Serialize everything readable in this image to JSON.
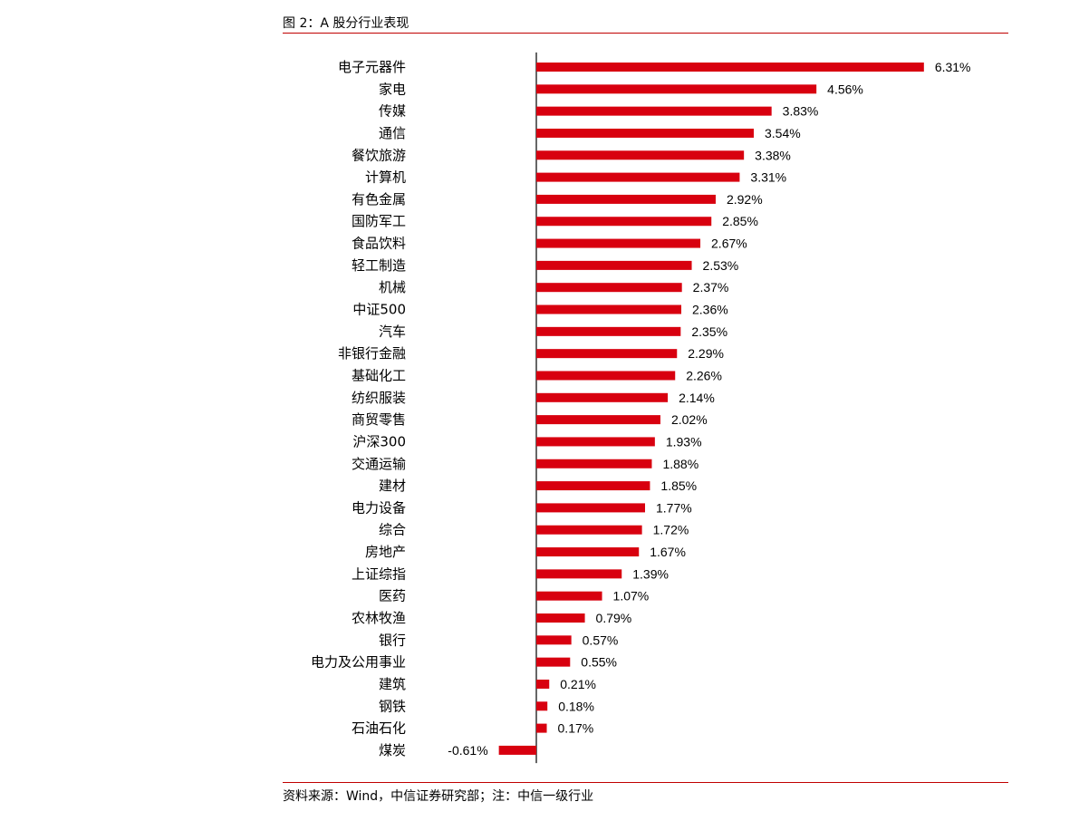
{
  "title": "图 2：A 股分行业表现",
  "source": "资料来源：Wind，中信证券研究部；注：中信一级行业",
  "bar_color": "#d8000f",
  "chart_data": {
    "type": "bar",
    "orientation": "horizontal",
    "categories": [
      "电子元器件",
      "家电",
      "传媒",
      "通信",
      "餐饮旅游",
      "计算机",
      "有色金属",
      "国防军工",
      "食品饮料",
      "轻工制造",
      "机械",
      "中证500",
      "汽车",
      "非银行金融",
      "基础化工",
      "纺织服装",
      "商贸零售",
      "沪深300",
      "交通运输",
      "建材",
      "电力设备",
      "综合",
      "房地产",
      "上证综指",
      "医药",
      "农林牧渔",
      "银行",
      "电力及公用事业",
      "建筑",
      "钢铁",
      "石油石化",
      "煤炭"
    ],
    "values": [
      6.31,
      4.56,
      3.83,
      3.54,
      3.38,
      3.31,
      2.92,
      2.85,
      2.67,
      2.53,
      2.37,
      2.36,
      2.35,
      2.29,
      2.26,
      2.14,
      2.02,
      1.93,
      1.88,
      1.85,
      1.77,
      1.72,
      1.67,
      1.39,
      1.07,
      0.79,
      0.57,
      0.55,
      0.21,
      0.18,
      0.17,
      -0.61
    ],
    "value_labels": [
      "6.31%",
      "4.56%",
      "3.83%",
      "3.54%",
      "3.38%",
      "3.31%",
      "2.92%",
      "2.85%",
      "2.67%",
      "2.53%",
      "2.37%",
      "2.36%",
      "2.35%",
      "2.29%",
      "2.26%",
      "2.14%",
      "2.02%",
      "1.93%",
      "1.88%",
      "1.85%",
      "1.77%",
      "1.72%",
      "1.67%",
      "1.39%",
      "1.07%",
      "0.79%",
      "0.57%",
      "0.55%",
      "0.21%",
      "0.18%",
      "0.17%",
      "-0.61%"
    ],
    "unit": "%",
    "grid": false,
    "legend": "none"
  }
}
